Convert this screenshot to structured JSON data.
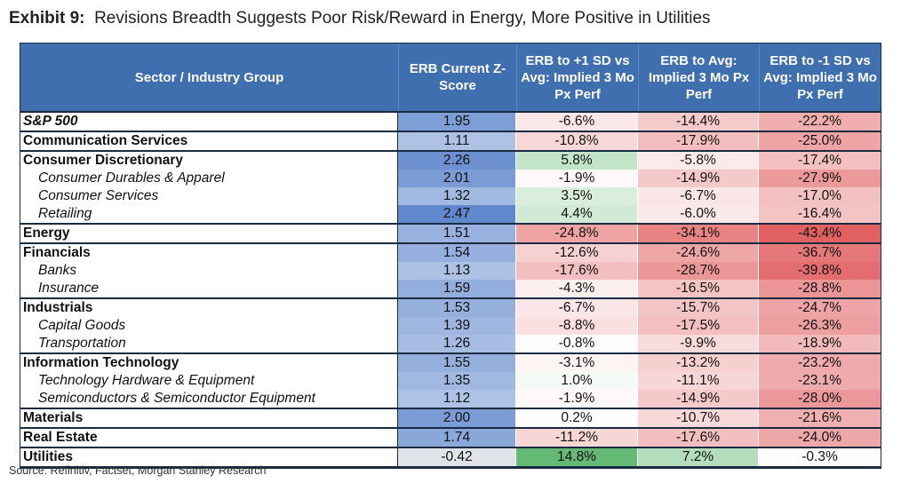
{
  "title": {
    "prefix": "Exhibit 9:",
    "text": "Revisions Breadth Suggests Poor Risk/Reward in Energy, More Positive in Utilities"
  },
  "colors": {
    "header_bg": "#3f6fae",
    "positive": "#62b873",
    "negative": "#e05a5c",
    "zscore_blue": "#5f86cc"
  },
  "chart_data": {
    "type": "table",
    "columns": [
      "Sector / Industry Group",
      "ERB Current Z-Score",
      "ERB to +1 SD vs Avg: Implied 3 Mo Px Perf",
      "ERB to Avg: Implied 3 Mo Px Perf",
      "ERB to -1 SD vs Avg: Implied 3 Mo Px Perf"
    ],
    "groups": [
      {
        "rows": [
          {
            "name": "S&P 500",
            "style": "bold-italic",
            "values": [
              "1.95",
              "-6.6%",
              "-14.4%",
              "-22.2%"
            ],
            "num": [
              1.95,
              -6.6,
              -14.4,
              -22.2
            ]
          }
        ]
      },
      {
        "rows": [
          {
            "name": "Communication Services",
            "style": "bold",
            "values": [
              "1.11",
              "-10.8%",
              "-17.9%",
              "-25.0%"
            ],
            "num": [
              1.11,
              -10.8,
              -17.9,
              -25.0
            ]
          }
        ]
      },
      {
        "rows": [
          {
            "name": "Consumer Discretionary",
            "style": "bold",
            "values": [
              "2.26",
              "5.8%",
              "-5.8%",
              "-17.4%"
            ],
            "num": [
              2.26,
              5.8,
              -5.8,
              -17.4
            ]
          },
          {
            "name": "Consumer Durables & Apparel",
            "style": "italic",
            "values": [
              "2.01",
              "-1.9%",
              "-14.9%",
              "-27.9%"
            ],
            "num": [
              2.01,
              -1.9,
              -14.9,
              -27.9
            ]
          },
          {
            "name": "Consumer Services",
            "style": "italic",
            "values": [
              "1.32",
              "3.5%",
              "-6.7%",
              "-17.0%"
            ],
            "num": [
              1.32,
              3.5,
              -6.7,
              -17.0
            ]
          },
          {
            "name": "Retailing",
            "style": "italic",
            "values": [
              "2.47",
              "4.4%",
              "-6.0%",
              "-16.4%"
            ],
            "num": [
              2.47,
              4.4,
              -6.0,
              -16.4
            ]
          }
        ]
      },
      {
        "rows": [
          {
            "name": "Energy",
            "style": "bold",
            "values": [
              "1.51",
              "-24.8%",
              "-34.1%",
              "-43.4%"
            ],
            "num": [
              1.51,
              -24.8,
              -34.1,
              -43.4
            ]
          }
        ]
      },
      {
        "rows": [
          {
            "name": "Financials",
            "style": "bold",
            "values": [
              "1.54",
              "-12.6%",
              "-24.6%",
              "-36.7%"
            ],
            "num": [
              1.54,
              -12.6,
              -24.6,
              -36.7
            ]
          },
          {
            "name": "Banks",
            "style": "italic",
            "values": [
              "1.13",
              "-17.6%",
              "-28.7%",
              "-39.8%"
            ],
            "num": [
              1.13,
              -17.6,
              -28.7,
              -39.8
            ]
          },
          {
            "name": "Insurance",
            "style": "italic",
            "values": [
              "1.59",
              "-4.3%",
              "-16.5%",
              "-28.8%"
            ],
            "num": [
              1.59,
              -4.3,
              -16.5,
              -28.8
            ]
          }
        ]
      },
      {
        "rows": [
          {
            "name": "Industrials",
            "style": "bold",
            "values": [
              "1.53",
              "-6.7%",
              "-15.7%",
              "-24.7%"
            ],
            "num": [
              1.53,
              -6.7,
              -15.7,
              -24.7
            ]
          },
          {
            "name": "Capital Goods",
            "style": "italic",
            "values": [
              "1.39",
              "-8.8%",
              "-17.5%",
              "-26.3%"
            ],
            "num": [
              1.39,
              -8.8,
              -17.5,
              -26.3
            ]
          },
          {
            "name": "Transportation",
            "style": "italic",
            "values": [
              "1.26",
              "-0.8%",
              "-9.9%",
              "-18.9%"
            ],
            "num": [
              1.26,
              -0.8,
              -9.9,
              -18.9
            ]
          }
        ]
      },
      {
        "rows": [
          {
            "name": "Information Technology",
            "style": "bold",
            "values": [
              "1.55",
              "-3.1%",
              "-13.2%",
              "-23.2%"
            ],
            "num": [
              1.55,
              -3.1,
              -13.2,
              -23.2
            ]
          },
          {
            "name": "Technology Hardware & Equipment",
            "style": "italic",
            "values": [
              "1.35",
              "1.0%",
              "-11.1%",
              "-23.1%"
            ],
            "num": [
              1.35,
              1.0,
              -11.1,
              -23.1
            ]
          },
          {
            "name": "Semiconductors & Semiconductor Equipment",
            "style": "italic",
            "values": [
              "1.12",
              "-1.9%",
              "-14.9%",
              "-28.0%"
            ],
            "num": [
              1.12,
              -1.9,
              -14.9,
              -28.0
            ]
          }
        ]
      },
      {
        "rows": [
          {
            "name": "Materials",
            "style": "bold",
            "values": [
              "2.00",
              "0.2%",
              "-10.7%",
              "-21.6%"
            ],
            "num": [
              2.0,
              0.2,
              -10.7,
              -21.6
            ]
          }
        ]
      },
      {
        "rows": [
          {
            "name": "Real Estate",
            "style": "bold",
            "values": [
              "1.74",
              "-11.2%",
              "-17.6%",
              "-24.0%"
            ],
            "num": [
              1.74,
              -11.2,
              -17.6,
              -24.0
            ]
          }
        ]
      },
      {
        "rows": [
          {
            "name": "Utilities",
            "style": "bold",
            "values": [
              "-0.42",
              "14.8%",
              "7.2%",
              "-0.3%"
            ],
            "num": [
              -0.42,
              14.8,
              7.2,
              -0.3
            ]
          }
        ]
      }
    ]
  },
  "source": "Source: Refinitiv, Factset, Morgan Stanley Research"
}
